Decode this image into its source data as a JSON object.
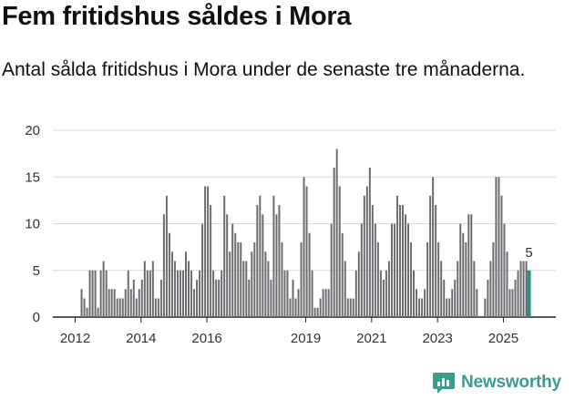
{
  "title": "Fem fritidshus såldes i Mora",
  "subtitle": "Antal sålda fritidshus i Mora under de senaste tre månaderna.",
  "brand": "Newsworthy",
  "colors": {
    "bar": "#6d6d72",
    "highlight": "#2a8f85",
    "grid": "#d9d9d9",
    "axis": "#222222",
    "brand": "#3b9b8f"
  },
  "chart_data": {
    "type": "bar",
    "title": "Fem fritidshus såldes i Mora",
    "subtitle": "Antal sålda fritidshus i Mora under de senaste tre månaderna.",
    "xlabel": "",
    "ylabel": "",
    "ylim": [
      0,
      20
    ],
    "yticks": [
      0,
      5,
      10,
      15,
      20
    ],
    "xticks": [
      "2012",
      "2014",
      "2016",
      "2019",
      "2021",
      "2023",
      "2025"
    ],
    "x_start": "2012-01",
    "period": "rolling 3-month sum, monthly",
    "values": [
      null,
      null,
      3,
      2,
      1,
      5,
      5,
      5,
      1,
      5,
      6,
      5,
      3,
      3,
      3,
      2,
      2,
      2,
      3,
      5,
      3,
      4,
      2,
      3,
      4,
      6,
      5,
      5,
      6,
      2,
      2,
      4,
      11,
      13,
      9,
      7,
      6,
      5,
      5,
      5,
      7,
      6,
      5,
      3,
      4,
      5,
      10,
      14,
      14,
      12,
      5,
      4,
      4,
      5,
      13,
      11,
      7,
      10,
      9,
      8,
      8,
      6,
      6,
      4,
      7,
      8,
      12,
      13,
      11,
      7,
      6,
      4,
      13,
      11,
      12,
      8,
      5,
      5,
      2,
      4,
      2,
      3,
      8,
      15,
      14,
      9,
      5,
      1,
      1,
      2,
      3,
      3,
      3,
      10,
      16,
      18,
      14,
      9,
      6,
      2,
      2,
      2,
      5,
      7,
      10,
      13,
      14,
      16,
      12,
      10,
      8,
      5,
      4,
      5,
      6,
      10,
      10,
      13,
      12,
      12,
      11,
      10,
      8,
      5,
      3,
      2,
      2,
      3,
      8,
      13,
      15,
      12,
      8,
      6,
      4,
      2,
      2,
      3,
      4,
      6,
      10,
      9,
      8,
      11,
      11,
      6,
      3,
      null,
      null,
      2,
      4,
      6,
      8,
      15,
      15,
      13,
      10,
      7,
      3,
      3,
      4,
      5,
      6,
      6,
      6,
      5
    ],
    "last_value_label": "5"
  }
}
